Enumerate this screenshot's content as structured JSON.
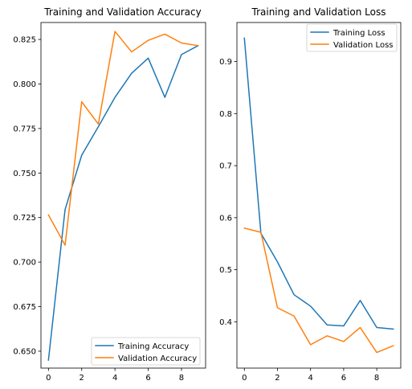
{
  "chart_data": [
    {
      "type": "line",
      "title": "Training and Validation Accuracy",
      "xlabel": "",
      "ylabel": "",
      "x": [
        0,
        1,
        2,
        3,
        4,
        5,
        6,
        7,
        8,
        9
      ],
      "xlim": [
        -0.45,
        9.45
      ],
      "ylim": [
        0.6405,
        0.8345
      ],
      "xticks": [
        0,
        2,
        4,
        6,
        8
      ],
      "xtick_labels": [
        "0",
        "2",
        "4",
        "6",
        "8"
      ],
      "yticks": [
        0.65,
        0.675,
        0.7,
        0.725,
        0.75,
        0.775,
        0.8,
        0.825
      ],
      "ytick_labels": [
        "0.650",
        "0.675",
        "0.700",
        "0.725",
        "0.750",
        "0.775",
        "0.800",
        "0.825"
      ],
      "legend_position": "lower right",
      "grid": false,
      "series": [
        {
          "name": "Training Accuracy",
          "color": "#1f77b4",
          "values": [
            0.645,
            0.7295,
            0.76,
            0.776,
            0.7925,
            0.806,
            0.8145,
            0.7925,
            0.8165,
            0.8215
          ]
        },
        {
          "name": "Validation Accuracy",
          "color": "#ff7f0e",
          "values": [
            0.7265,
            0.7095,
            0.79,
            0.7775,
            0.8295,
            0.818,
            0.8245,
            0.828,
            0.823,
            0.8215
          ]
        }
      ]
    },
    {
      "type": "line",
      "title": "Training and Validation Loss",
      "xlabel": "",
      "ylabel": "",
      "x": [
        0,
        1,
        2,
        3,
        4,
        5,
        6,
        7,
        8,
        9
      ],
      "xlim": [
        -0.45,
        9.45
      ],
      "ylim": [
        0.311,
        0.975
      ],
      "xticks": [
        0,
        2,
        4,
        6,
        8
      ],
      "xtick_labels": [
        "0",
        "2",
        "4",
        "6",
        "8"
      ],
      "yticks": [
        0.4,
        0.5,
        0.6,
        0.7,
        0.8,
        0.9
      ],
      "ytick_labels": [
        "0.4",
        "0.5",
        "0.6",
        "0.7",
        "0.8",
        "0.9"
      ],
      "legend_position": "upper right",
      "grid": false,
      "series": [
        {
          "name": "Training Loss",
          "color": "#1f77b4",
          "values": [
            0.945,
            0.57,
            0.515,
            0.452,
            0.43,
            0.394,
            0.392,
            0.441,
            0.389,
            0.386
          ]
        },
        {
          "name": "Validation Loss",
          "color": "#ff7f0e",
          "values": [
            0.58,
            0.572,
            0.427,
            0.411,
            0.356,
            0.373,
            0.362,
            0.389,
            0.341,
            0.354
          ]
        }
      ]
    }
  ]
}
